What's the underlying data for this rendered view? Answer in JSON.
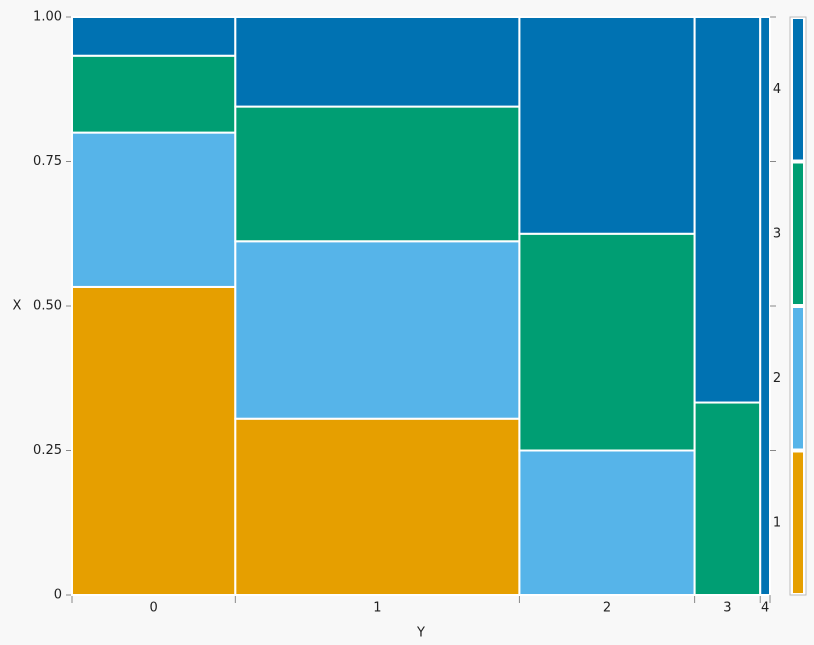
{
  "chart_data": {
    "type": "mosaic",
    "x_label": "Y",
    "y_label": "X",
    "categories": [
      "0",
      "1",
      "2",
      "3",
      "4"
    ],
    "widths": [
      0.234,
      0.407,
      0.251,
      0.094,
      0.014
    ],
    "series": [
      {
        "name": "1",
        "color": "#e69f00",
        "values": [
          0.533,
          0.305,
          0,
          0,
          0
        ]
      },
      {
        "name": "2",
        "color": "#56b4e9",
        "values": [
          0.267,
          0.307,
          0.25,
          0,
          0
        ]
      },
      {
        "name": "3",
        "color": "#009e73",
        "values": [
          0.133,
          0.233,
          0.375,
          0.333,
          0
        ]
      },
      {
        "name": "4",
        "color": "#0072b2",
        "values": [
          0.067,
          0.155,
          0.375,
          0.667,
          1
        ]
      }
    ],
    "ylim": [
      0,
      1
    ],
    "yticks": [
      0,
      0.25,
      {
        "value": 0.5,
        "label": "0.50"
      },
      {
        "value": 0.75,
        "label": "0.75"
      },
      {
        "value": 1,
        "label": "1.00"
      }
    ]
  }
}
